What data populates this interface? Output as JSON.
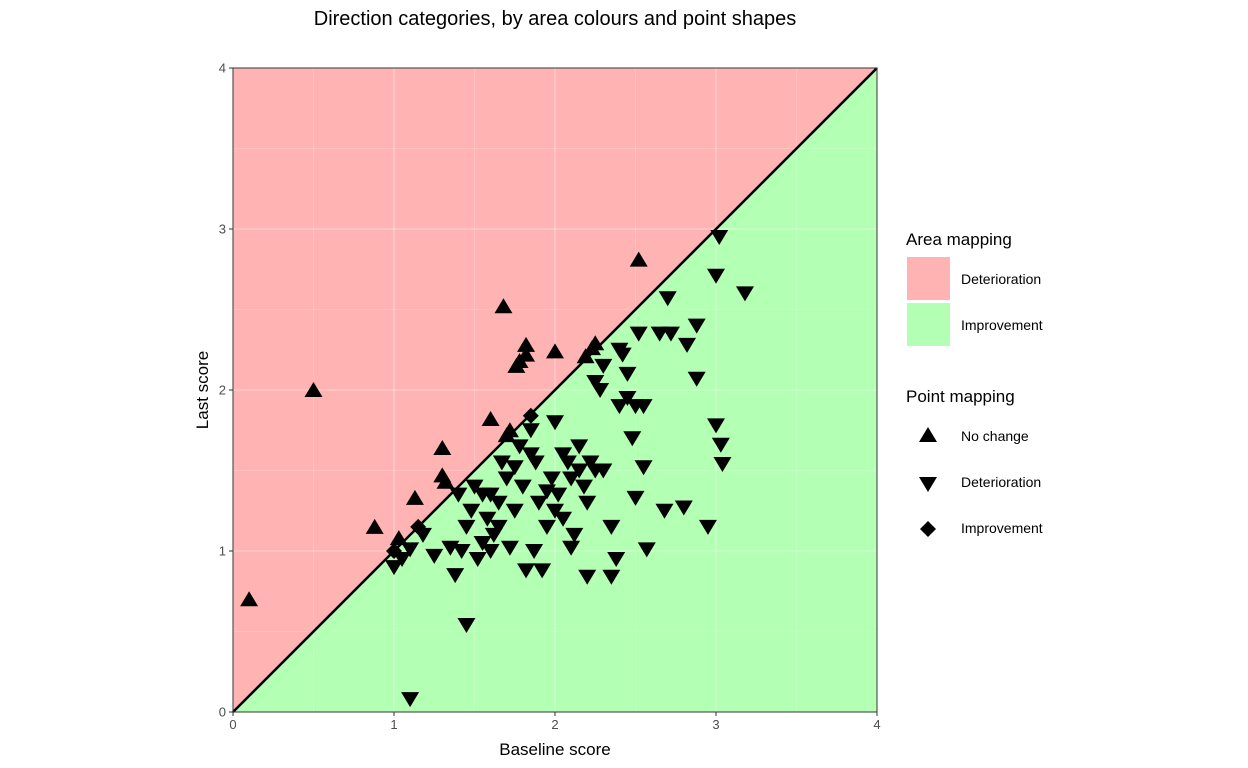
{
  "chart_data": {
    "type": "scatter",
    "title": "Direction categories, by area colours and point shapes",
    "xlabel": "Baseline score",
    "ylabel": "Last score",
    "xlim": [
      0,
      4
    ],
    "ylim": [
      0,
      4
    ],
    "x_ticks": [
      0,
      1,
      2,
      3,
      4
    ],
    "y_ticks": [
      0,
      1,
      2,
      3,
      4
    ],
    "grid": true,
    "reference_line": "y = x",
    "area_colors": {
      "upper": "#ffb3b3",
      "lower": "#b3ffb3"
    },
    "legend_placement": "right",
    "area_legend": {
      "title": "Area mapping",
      "items": [
        {
          "label": "Deterioration",
          "color": "#ffb3b3"
        },
        {
          "label": "Improvement",
          "color": "#b3ffb3"
        }
      ]
    },
    "point_legend": {
      "title": "Point mapping",
      "items": [
        {
          "label": "No change",
          "shape": "triangle-up"
        },
        {
          "label": "Deterioration",
          "shape": "triangle-down"
        },
        {
          "label": "Improvement",
          "shape": "diamond"
        }
      ]
    },
    "series": [
      {
        "name": "No change",
        "shape": "triangle-up",
        "points": [
          [
            0.1,
            0.7
          ],
          [
            0.5,
            2.0
          ],
          [
            0.88,
            1.15
          ],
          [
            1.03,
            1.08
          ],
          [
            1.13,
            1.33
          ],
          [
            1.3,
            1.64
          ],
          [
            1.3,
            1.47
          ],
          [
            1.32,
            1.43
          ],
          [
            1.6,
            1.82
          ],
          [
            1.68,
            2.52
          ],
          [
            1.7,
            1.72
          ],
          [
            1.72,
            1.75
          ],
          [
            1.76,
            2.15
          ],
          [
            1.78,
            2.18
          ],
          [
            1.82,
            2.28
          ],
          [
            1.82,
            2.22
          ],
          [
            2.0,
            2.24
          ],
          [
            2.19,
            2.21
          ],
          [
            2.23,
            2.26
          ],
          [
            2.25,
            2.29
          ],
          [
            2.52,
            2.81
          ]
        ]
      },
      {
        "name": "Deterioration",
        "shape": "triangle-down",
        "points": [
          [
            1.1,
            0.08
          ],
          [
            1.45,
            0.54
          ],
          [
            1.0,
            0.9
          ],
          [
            1.05,
            0.95
          ],
          [
            1.1,
            1.01
          ],
          [
            1.18,
            1.1
          ],
          [
            1.25,
            0.97
          ],
          [
            1.35,
            1.02
          ],
          [
            1.38,
            0.85
          ],
          [
            1.42,
            1.0
          ],
          [
            1.45,
            1.15
          ],
          [
            1.48,
            1.25
          ],
          [
            1.52,
            0.95
          ],
          [
            1.55,
            1.05
          ],
          [
            1.58,
            1.2
          ],
          [
            1.6,
            1.35
          ],
          [
            1.62,
            1.1
          ],
          [
            1.65,
            1.3
          ],
          [
            1.67,
            1.55
          ],
          [
            1.7,
            1.45
          ],
          [
            1.72,
            1.02
          ],
          [
            1.75,
            1.25
          ],
          [
            1.78,
            1.65
          ],
          [
            1.8,
            1.4
          ],
          [
            1.82,
            0.88
          ],
          [
            1.85,
            1.6
          ],
          [
            1.87,
            1.0
          ],
          [
            1.9,
            1.3
          ],
          [
            1.92,
            0.88
          ],
          [
            1.95,
            1.15
          ],
          [
            1.98,
            1.45
          ],
          [
            2.0,
            1.8
          ],
          [
            2.02,
            1.35
          ],
          [
            2.05,
            1.2
          ],
          [
            2.08,
            1.55
          ],
          [
            2.1,
            1.02
          ],
          [
            2.12,
            1.1
          ],
          [
            2.15,
            1.5
          ],
          [
            2.18,
            1.4
          ],
          [
            2.2,
            0.84
          ],
          [
            2.22,
            1.55
          ],
          [
            2.25,
            1.5
          ],
          [
            2.28,
            2.0
          ],
          [
            2.3,
            1.5
          ],
          [
            2.35,
            1.15
          ],
          [
            2.38,
            0.95
          ],
          [
            2.35,
            0.84
          ],
          [
            2.4,
            1.9
          ],
          [
            2.42,
            2.22
          ],
          [
            2.45,
            1.95
          ],
          [
            2.48,
            1.7
          ],
          [
            2.5,
            1.33
          ],
          [
            2.52,
            2.35
          ],
          [
            2.55,
            1.52
          ],
          [
            2.57,
            1.01
          ],
          [
            2.65,
            2.35
          ],
          [
            2.68,
            1.25
          ],
          [
            2.72,
            2.35
          ],
          [
            2.8,
            1.27
          ],
          [
            2.82,
            2.28
          ],
          [
            2.88,
            2.4
          ],
          [
            2.88,
            2.07
          ],
          [
            2.95,
            1.15
          ],
          [
            3.0,
            1.78
          ],
          [
            3.0,
            2.71
          ],
          [
            3.02,
            2.95
          ],
          [
            3.03,
            1.66
          ],
          [
            3.04,
            1.54
          ],
          [
            3.18,
            2.6
          ],
          [
            2.7,
            2.57
          ],
          [
            1.88,
            1.55
          ],
          [
            1.95,
            1.37
          ],
          [
            2.0,
            1.25
          ],
          [
            1.55,
            1.35
          ],
          [
            1.6,
            1.0
          ],
          [
            1.4,
            1.35
          ],
          [
            1.5,
            1.4
          ],
          [
            1.65,
            1.15
          ],
          [
            1.75,
            1.52
          ],
          [
            1.85,
            1.75
          ],
          [
            2.05,
            1.6
          ],
          [
            2.1,
            1.45
          ],
          [
            2.2,
            1.3
          ],
          [
            2.3,
            2.15
          ],
          [
            2.45,
            2.1
          ],
          [
            2.5,
            1.9
          ],
          [
            2.55,
            1.9
          ],
          [
            2.4,
            2.25
          ],
          [
            2.25,
            2.05
          ],
          [
            2.15,
            1.65
          ]
        ]
      },
      {
        "name": "Improvement",
        "shape": "diamond",
        "points": [
          [
            1.0,
            1.0
          ],
          [
            1.15,
            1.15
          ],
          [
            1.85,
            1.84
          ]
        ]
      }
    ]
  }
}
